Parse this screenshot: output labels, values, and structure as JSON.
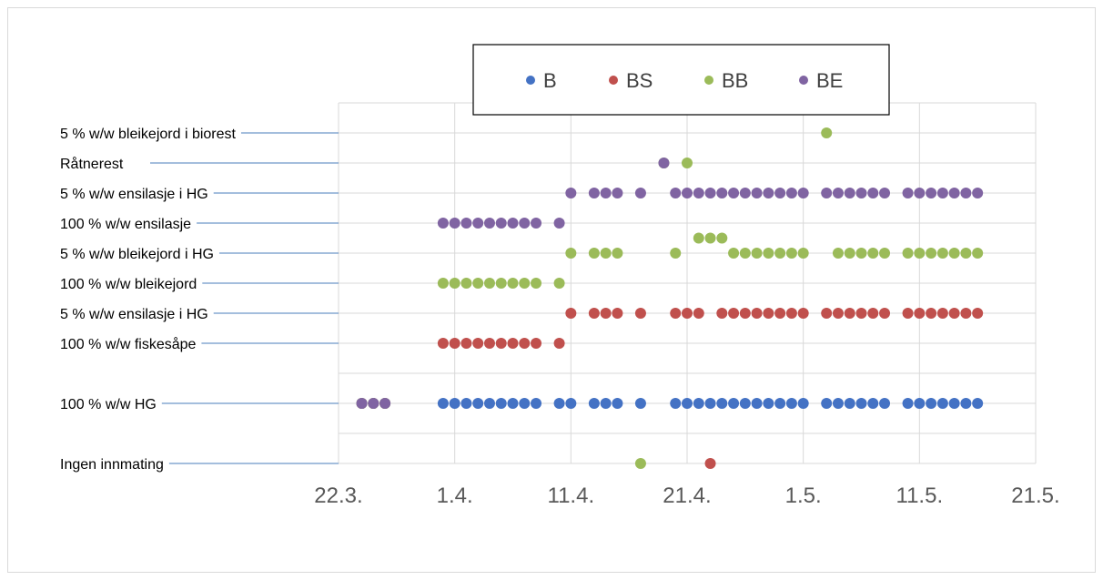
{
  "chart_data": {
    "type": "scatter",
    "x_axis": {
      "type": "date",
      "range": [
        "2014-03-22",
        "2014-05-21"
      ],
      "tick_labels": [
        "22.3.",
        "1.4.",
        "11.4.",
        "21.4.",
        "1.5.",
        "11.5.",
        "21.5."
      ],
      "tick_dates": [
        "2014-03-22",
        "2014-04-01",
        "2014-04-11",
        "2014-04-21",
        "2014-05-01",
        "2014-05-11",
        "2014-05-21"
      ]
    },
    "y_axis": {
      "range": [
        0,
        12
      ],
      "gridlines": true
    },
    "y_categories": [
      {
        "label": "Ingen innmating",
        "y": 0
      },
      {
        "label": "100 % w/w HG",
        "y": 2
      },
      {
        "label": "100 % w/w fiskesåpe",
        "y": 4
      },
      {
        "label": "5 % w/w ensilasje i HG",
        "y": 5
      },
      {
        "label": "100 % w/w bleikejord",
        "y": 6
      },
      {
        "label": "5 % w/w bleikejord i HG",
        "y": 7
      },
      {
        "label": "100 % w/w ensilasje",
        "y": 8
      },
      {
        "label": "5 % w/w ensilasje i HG",
        "y": 9
      },
      {
        "label": "Råtnerest",
        "y": 10
      },
      {
        "label": "5 % w/w bleikejord i biorest",
        "y": 11
      }
    ],
    "legend": {
      "position": "top",
      "entries": [
        "B",
        "BS",
        "BB",
        "BE"
      ]
    },
    "series": [
      {
        "name": "B",
        "color": "#4472C4",
        "points": [
          {
            "x": "2014-03-24",
            "y": 2
          },
          {
            "x": "2014-03-25",
            "y": 2
          },
          {
            "x": "2014-03-26",
            "y": 2
          },
          {
            "x": "2014-03-31",
            "y": 2
          },
          {
            "x": "2014-04-01",
            "y": 2
          },
          {
            "x": "2014-04-02",
            "y": 2
          },
          {
            "x": "2014-04-03",
            "y": 2
          },
          {
            "x": "2014-04-04",
            "y": 2
          },
          {
            "x": "2014-04-05",
            "y": 2
          },
          {
            "x": "2014-04-06",
            "y": 2
          },
          {
            "x": "2014-04-07",
            "y": 2
          },
          {
            "x": "2014-04-08",
            "y": 2
          },
          {
            "x": "2014-04-10",
            "y": 2
          },
          {
            "x": "2014-04-11",
            "y": 2
          },
          {
            "x": "2014-04-13",
            "y": 2
          },
          {
            "x": "2014-04-14",
            "y": 2
          },
          {
            "x": "2014-04-15",
            "y": 2
          },
          {
            "x": "2014-04-17",
            "y": 2
          },
          {
            "x": "2014-04-20",
            "y": 2
          },
          {
            "x": "2014-04-21",
            "y": 2
          },
          {
            "x": "2014-04-22",
            "y": 2
          },
          {
            "x": "2014-04-23",
            "y": 2
          },
          {
            "x": "2014-04-24",
            "y": 2
          },
          {
            "x": "2014-04-25",
            "y": 2
          },
          {
            "x": "2014-04-26",
            "y": 2
          },
          {
            "x": "2014-04-27",
            "y": 2
          },
          {
            "x": "2014-04-28",
            "y": 2
          },
          {
            "x": "2014-04-29",
            "y": 2
          },
          {
            "x": "2014-04-30",
            "y": 2
          },
          {
            "x": "2014-05-01",
            "y": 2
          },
          {
            "x": "2014-05-03",
            "y": 2
          },
          {
            "x": "2014-05-04",
            "y": 2
          },
          {
            "x": "2014-05-05",
            "y": 2
          },
          {
            "x": "2014-05-06",
            "y": 2
          },
          {
            "x": "2014-05-07",
            "y": 2
          },
          {
            "x": "2014-05-08",
            "y": 2
          },
          {
            "x": "2014-05-10",
            "y": 2
          },
          {
            "x": "2014-05-11",
            "y": 2
          },
          {
            "x": "2014-05-12",
            "y": 2
          },
          {
            "x": "2014-05-13",
            "y": 2
          },
          {
            "x": "2014-05-14",
            "y": 2
          },
          {
            "x": "2014-05-15",
            "y": 2
          },
          {
            "x": "2014-05-16",
            "y": 2
          }
        ]
      },
      {
        "name": "BS",
        "color": "#C0504D",
        "points": [
          {
            "x": "2014-04-23",
            "y": 0
          },
          {
            "x": "2014-03-24",
            "y": 2
          },
          {
            "x": "2014-03-25",
            "y": 2
          },
          {
            "x": "2014-03-26",
            "y": 2
          },
          {
            "x": "2014-03-31",
            "y": 4
          },
          {
            "x": "2014-04-01",
            "y": 4
          },
          {
            "x": "2014-04-02",
            "y": 4
          },
          {
            "x": "2014-04-03",
            "y": 4
          },
          {
            "x": "2014-04-04",
            "y": 4
          },
          {
            "x": "2014-04-05",
            "y": 4
          },
          {
            "x": "2014-04-06",
            "y": 4
          },
          {
            "x": "2014-04-07",
            "y": 4
          },
          {
            "x": "2014-04-08",
            "y": 4
          },
          {
            "x": "2014-04-10",
            "y": 4
          },
          {
            "x": "2014-04-11",
            "y": 5
          },
          {
            "x": "2014-04-13",
            "y": 5
          },
          {
            "x": "2014-04-14",
            "y": 5
          },
          {
            "x": "2014-04-15",
            "y": 5
          },
          {
            "x": "2014-04-17",
            "y": 5
          },
          {
            "x": "2014-04-20",
            "y": 5
          },
          {
            "x": "2014-04-21",
            "y": 5
          },
          {
            "x": "2014-04-22",
            "y": 5
          },
          {
            "x": "2014-04-24",
            "y": 5
          },
          {
            "x": "2014-04-25",
            "y": 5
          },
          {
            "x": "2014-04-26",
            "y": 5
          },
          {
            "x": "2014-04-27",
            "y": 5
          },
          {
            "x": "2014-04-28",
            "y": 5
          },
          {
            "x": "2014-04-29",
            "y": 5
          },
          {
            "x": "2014-04-30",
            "y": 5
          },
          {
            "x": "2014-05-01",
            "y": 5
          },
          {
            "x": "2014-05-03",
            "y": 5
          },
          {
            "x": "2014-05-04",
            "y": 5
          },
          {
            "x": "2014-05-05",
            "y": 5
          },
          {
            "x": "2014-05-06",
            "y": 5
          },
          {
            "x": "2014-05-07",
            "y": 5
          },
          {
            "x": "2014-05-08",
            "y": 5
          },
          {
            "x": "2014-05-10",
            "y": 5
          },
          {
            "x": "2014-05-11",
            "y": 5
          },
          {
            "x": "2014-05-12",
            "y": 5
          },
          {
            "x": "2014-05-13",
            "y": 5
          },
          {
            "x": "2014-05-14",
            "y": 5
          },
          {
            "x": "2014-05-15",
            "y": 5
          },
          {
            "x": "2014-05-16",
            "y": 5
          }
        ]
      },
      {
        "name": "BB",
        "color": "#9BBB59",
        "points": [
          {
            "x": "2014-04-17",
            "y": 0
          },
          {
            "x": "2014-03-24",
            "y": 2
          },
          {
            "x": "2014-03-25",
            "y": 2
          },
          {
            "x": "2014-03-26",
            "y": 2
          },
          {
            "x": "2014-03-31",
            "y": 6
          },
          {
            "x": "2014-04-01",
            "y": 6
          },
          {
            "x": "2014-04-02",
            "y": 6
          },
          {
            "x": "2014-04-03",
            "y": 6
          },
          {
            "x": "2014-04-04",
            "y": 6
          },
          {
            "x": "2014-04-05",
            "y": 6
          },
          {
            "x": "2014-04-06",
            "y": 6
          },
          {
            "x": "2014-04-07",
            "y": 6
          },
          {
            "x": "2014-04-08",
            "y": 6
          },
          {
            "x": "2014-04-10",
            "y": 6
          },
          {
            "x": "2014-04-11",
            "y": 7
          },
          {
            "x": "2014-04-13",
            "y": 7
          },
          {
            "x": "2014-04-14",
            "y": 7
          },
          {
            "x": "2014-04-15",
            "y": 7
          },
          {
            "x": "2014-04-20",
            "y": 7
          },
          {
            "x": "2014-04-22",
            "y": 7.5
          },
          {
            "x": "2014-04-23",
            "y": 7.5
          },
          {
            "x": "2014-04-24",
            "y": 7.5
          },
          {
            "x": "2014-04-25",
            "y": 7
          },
          {
            "x": "2014-04-26",
            "y": 7
          },
          {
            "x": "2014-04-27",
            "y": 7
          },
          {
            "x": "2014-04-28",
            "y": 7
          },
          {
            "x": "2014-04-29",
            "y": 7
          },
          {
            "x": "2014-04-30",
            "y": 7
          },
          {
            "x": "2014-05-01",
            "y": 7
          },
          {
            "x": "2014-05-04",
            "y": 7
          },
          {
            "x": "2014-05-05",
            "y": 7
          },
          {
            "x": "2014-05-06",
            "y": 7
          },
          {
            "x": "2014-05-07",
            "y": 7
          },
          {
            "x": "2014-05-08",
            "y": 7
          },
          {
            "x": "2014-05-10",
            "y": 7
          },
          {
            "x": "2014-05-11",
            "y": 7
          },
          {
            "x": "2014-05-12",
            "y": 7
          },
          {
            "x": "2014-05-13",
            "y": 7
          },
          {
            "x": "2014-05-14",
            "y": 7
          },
          {
            "x": "2014-05-15",
            "y": 7
          },
          {
            "x": "2014-05-16",
            "y": 7
          },
          {
            "x": "2014-04-19",
            "y": 10
          },
          {
            "x": "2014-04-21",
            "y": 10
          },
          {
            "x": "2014-05-03",
            "y": 11
          }
        ]
      },
      {
        "name": "BE",
        "color": "#8064A2",
        "points": [
          {
            "x": "2014-03-24",
            "y": 2
          },
          {
            "x": "2014-03-25",
            "y": 2
          },
          {
            "x": "2014-03-26",
            "y": 2
          },
          {
            "x": "2014-03-31",
            "y": 8
          },
          {
            "x": "2014-04-01",
            "y": 8
          },
          {
            "x": "2014-04-02",
            "y": 8
          },
          {
            "x": "2014-04-03",
            "y": 8
          },
          {
            "x": "2014-04-04",
            "y": 8
          },
          {
            "x": "2014-04-05",
            "y": 8
          },
          {
            "x": "2014-04-06",
            "y": 8
          },
          {
            "x": "2014-04-07",
            "y": 8
          },
          {
            "x": "2014-04-08",
            "y": 8
          },
          {
            "x": "2014-04-10",
            "y": 8
          },
          {
            "x": "2014-04-11",
            "y": 9
          },
          {
            "x": "2014-04-13",
            "y": 9
          },
          {
            "x": "2014-04-14",
            "y": 9
          },
          {
            "x": "2014-04-15",
            "y": 9
          },
          {
            "x": "2014-04-17",
            "y": 9
          },
          {
            "x": "2014-04-20",
            "y": 9
          },
          {
            "x": "2014-04-21",
            "y": 9
          },
          {
            "x": "2014-04-22",
            "y": 9
          },
          {
            "x": "2014-04-23",
            "y": 9
          },
          {
            "x": "2014-04-24",
            "y": 9
          },
          {
            "x": "2014-04-25",
            "y": 9
          },
          {
            "x": "2014-04-26",
            "y": 9
          },
          {
            "x": "2014-04-27",
            "y": 9
          },
          {
            "x": "2014-04-28",
            "y": 9
          },
          {
            "x": "2014-04-29",
            "y": 9
          },
          {
            "x": "2014-04-30",
            "y": 9
          },
          {
            "x": "2014-05-01",
            "y": 9
          },
          {
            "x": "2014-05-03",
            "y": 9
          },
          {
            "x": "2014-05-04",
            "y": 9
          },
          {
            "x": "2014-05-05",
            "y": 9
          },
          {
            "x": "2014-05-06",
            "y": 9
          },
          {
            "x": "2014-05-07",
            "y": 9
          },
          {
            "x": "2014-05-08",
            "y": 9
          },
          {
            "x": "2014-05-10",
            "y": 9
          },
          {
            "x": "2014-05-11",
            "y": 9
          },
          {
            "x": "2014-05-12",
            "y": 9
          },
          {
            "x": "2014-05-13",
            "y": 9
          },
          {
            "x": "2014-05-14",
            "y": 9
          },
          {
            "x": "2014-05-15",
            "y": 9
          },
          {
            "x": "2014-05-16",
            "y": 9
          },
          {
            "x": "2014-04-19",
            "y": 10
          }
        ]
      }
    ]
  }
}
